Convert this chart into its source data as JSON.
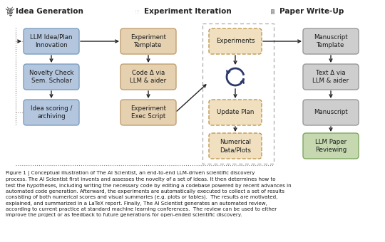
{
  "fig_width": 5.4,
  "fig_height": 3.4,
  "dpi": 100,
  "bg_color": "#ffffff",
  "box_blue_face": "#b3c6de",
  "box_blue_edge": "#7a9fc0",
  "box_tan_face": "#e5d0b0",
  "box_tan_edge": "#c0a070",
  "box_dashed_face": "#f0e0c0",
  "box_dashed_edge": "#c09850",
  "box_gray_face": "#cecece",
  "box_gray_edge": "#999999",
  "box_green_face": "#c5d8b0",
  "box_green_edge": "#80a860",
  "arrow_color": "#222222",
  "text_color": "#1a1a1a",
  "dot_color": "#888888",
  "section_titles": [
    "Idea Generation",
    "Experiment Iteration",
    "Paper Write-Up"
  ],
  "caption_bold": "Figure 1",
  "caption_text": " | Conceptual illustration of ᴛʜᴇ ᴀɪ ᴋᴄɪᴇɴᴛɪᴋᴜ, an end-to-end LLM-driven scientific discovery process. ᴛʜᴇ ᴀɪ ᴋᴄɪᴇɴᴛɪᴋᴜ first invents and assesses the novelty of a set of ideas. It then determines how to test the hypotheses, including writing the necessary code by editing a codebase powered by recent advances in automated code generation. Afterward, the experiments are automatically executed to collect a set of results consisting of both numerical scores and visual summaries (e.g. plots or tables). The results are motivated, explained, and summarized in a LaTeX report. Finally, ᴛʜᴇ ᴀɪ ᴋᴄɪᴇɴᴛɪᴋᴜ generates an automated review, according to current practice at standard machine learning conferences. The review can be used to either improve the project or as feedback to future generations for open-ended scientific discovery."
}
